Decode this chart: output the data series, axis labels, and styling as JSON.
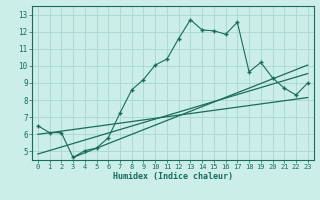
{
  "xlabel": "Humidex (Indice chaleur)",
  "bg_color": "#cceee8",
  "line_color": "#1a6b5e",
  "grid_color": "#a8d8d0",
  "xlim": [
    -0.5,
    23.5
  ],
  "ylim": [
    4.5,
    13.5
  ],
  "xticks": [
    0,
    1,
    2,
    3,
    4,
    5,
    6,
    7,
    8,
    9,
    10,
    11,
    12,
    13,
    14,
    15,
    16,
    17,
    18,
    19,
    20,
    21,
    22,
    23
  ],
  "yticks": [
    5,
    6,
    7,
    8,
    9,
    10,
    11,
    12,
    13
  ],
  "main_x": [
    0,
    1,
    2,
    3,
    4,
    5,
    6,
    7,
    8,
    9,
    10,
    11,
    12,
    13,
    14,
    15,
    16,
    17,
    18,
    19,
    20,
    21,
    22,
    23
  ],
  "main_y": [
    6.5,
    6.1,
    6.1,
    4.65,
    5.05,
    5.2,
    5.8,
    7.25,
    8.6,
    9.2,
    10.05,
    10.4,
    11.6,
    12.7,
    12.1,
    12.05,
    11.85,
    12.55,
    9.65,
    10.2,
    9.3,
    8.7,
    8.3,
    9.0
  ],
  "line1_x": [
    0,
    23
  ],
  "line1_y": [
    6.0,
    8.15
  ],
  "line2_x": [
    0,
    23
  ],
  "line2_y": [
    4.85,
    9.55
  ],
  "line3_x": [
    3,
    23
  ],
  "line3_y": [
    4.65,
    10.05
  ]
}
